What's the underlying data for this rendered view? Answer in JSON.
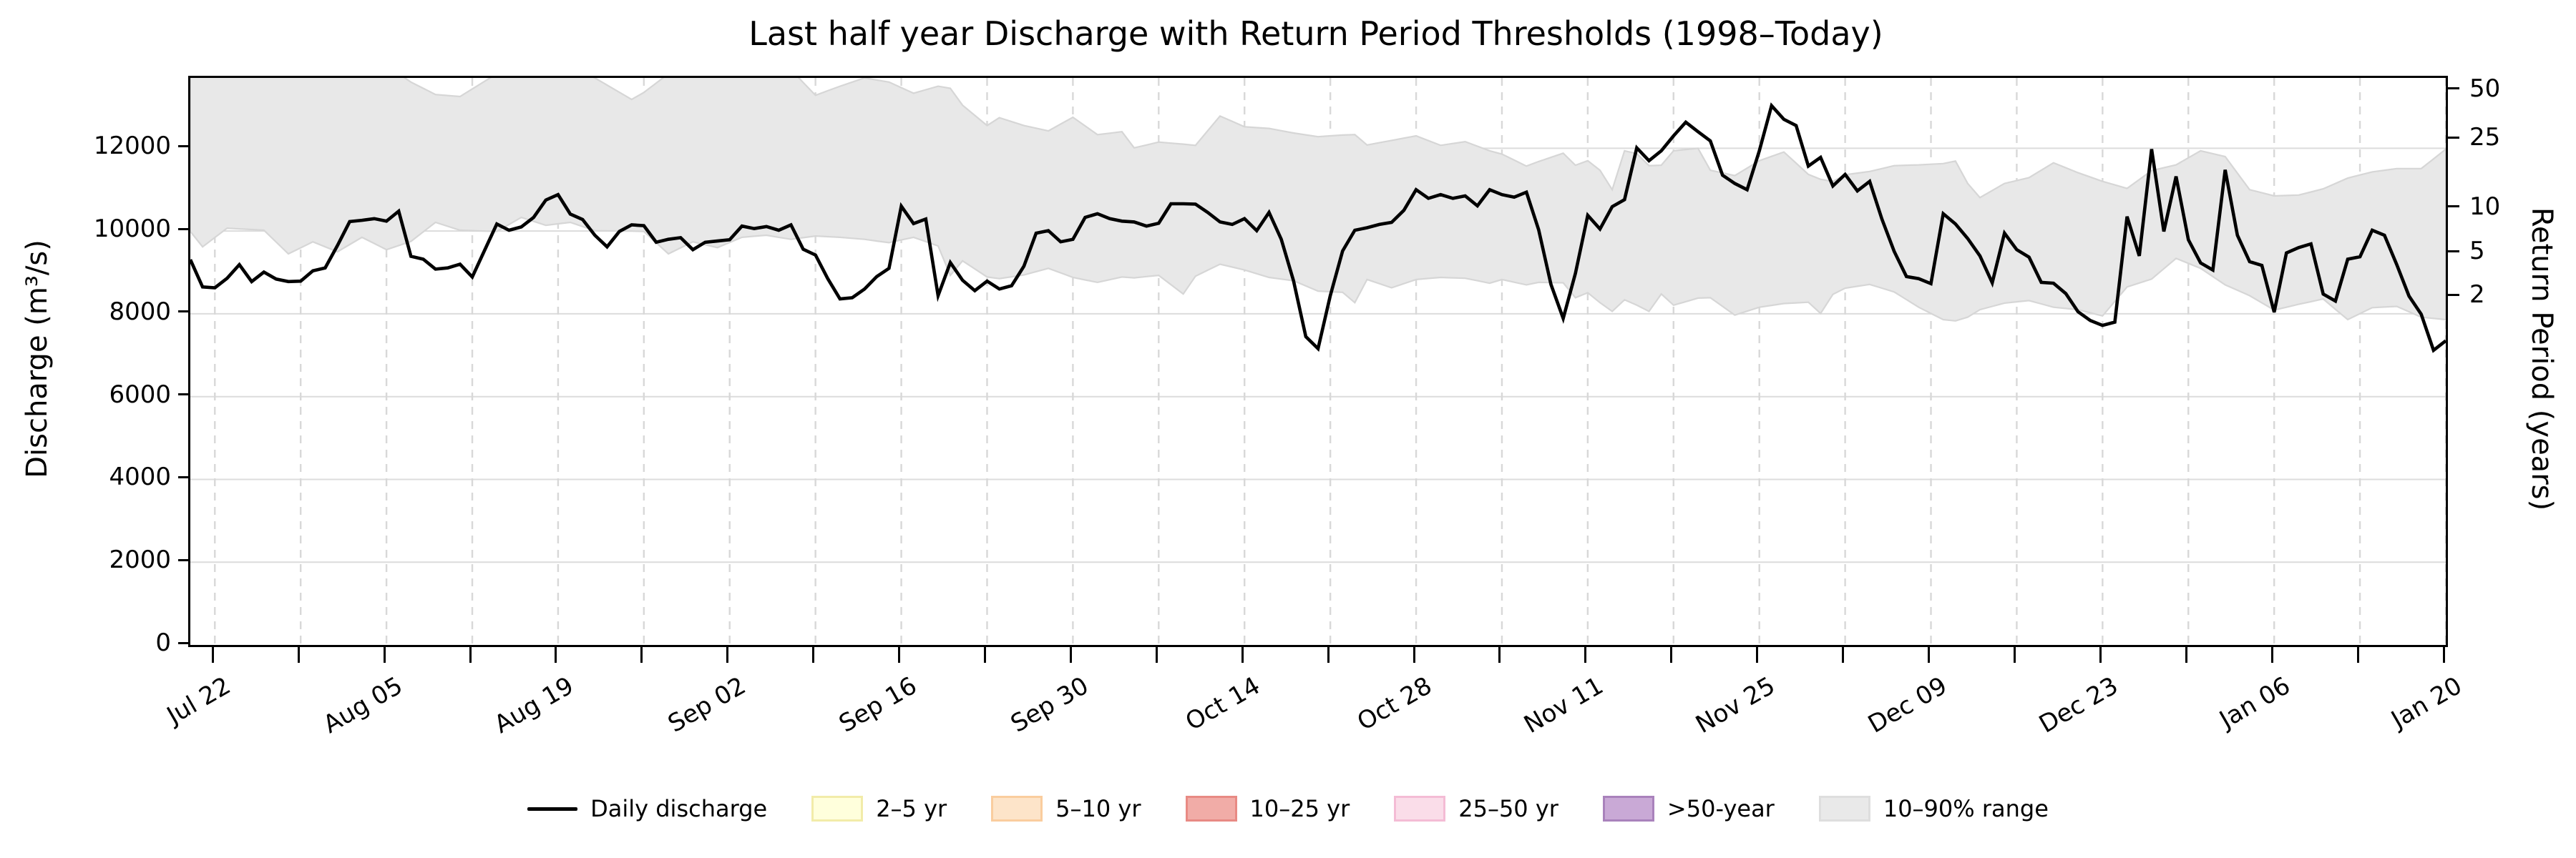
{
  "title": "Last half year Discharge with Return Period Thresholds (1998–Today)",
  "axes": {
    "left": {
      "label": "Discharge (m³/s)",
      "tick_values": [
        0,
        2000,
        4000,
        6000,
        8000,
        10000,
        12000
      ],
      "range": [
        0,
        13700
      ]
    },
    "right": {
      "label": "Return Period (years)",
      "ticks": [
        {
          "label": "2",
          "discharge": 8410
        },
        {
          "label": "5",
          "discharge": 9460
        },
        {
          "label": "10",
          "discharge": 10540
        },
        {
          "label": "25",
          "discharge": 12210
        },
        {
          "label": "50",
          "discharge": 13390
        }
      ]
    },
    "x": {
      "start_date": "Jul 20",
      "end_date": "Jan 20",
      "span_days": 184,
      "major_ticks": [
        {
          "day": 2,
          "label": "Jul 22"
        },
        {
          "day": 16,
          "label": "Aug 05"
        },
        {
          "day": 30,
          "label": "Aug 19"
        },
        {
          "day": 44,
          "label": "Sep 02"
        },
        {
          "day": 58,
          "label": "Sep 16"
        },
        {
          "day": 72,
          "label": "Sep 30"
        },
        {
          "day": 86,
          "label": "Oct 14"
        },
        {
          "day": 100,
          "label": "Oct 28"
        },
        {
          "day": 114,
          "label": "Nov 11"
        },
        {
          "day": 128,
          "label": "Nov 25"
        },
        {
          "day": 142,
          "label": "Dec 09"
        },
        {
          "day": 156,
          "label": "Dec 23"
        },
        {
          "day": 170,
          "label": "Jan 06"
        },
        {
          "day": 184,
          "label": "Jan 20"
        }
      ],
      "minor_tick_days": [
        9,
        23,
        37,
        51,
        65,
        79,
        93,
        107,
        121,
        135,
        149,
        163,
        177
      ]
    }
  },
  "legend": [
    {
      "label": "Daily discharge",
      "type": "line",
      "fill": "#000000",
      "edge": "#000000"
    },
    {
      "label": "2–5 yr",
      "type": "patch",
      "fill": "#FFFFDC",
      "edge": "#F2ECA9"
    },
    {
      "label": "5–10 yr",
      "type": "patch",
      "fill": "#FDE4C9",
      "edge": "#FACD9E"
    },
    {
      "label": "10–25 yr",
      "type": "patch",
      "fill": "#F1ACA7",
      "edge": "#E88A84"
    },
    {
      "label": "25–50 yr",
      "type": "patch",
      "fill": "#FADDE9",
      "edge": "#F4BCD5"
    },
    {
      "label": ">50-year",
      "type": "patch",
      "fill": "#C9A9D6",
      "edge": "#A982BC"
    },
    {
      "label": "10–90% range",
      "type": "patch",
      "fill": "#E9E9E9",
      "edge": "#DEDEDE"
    }
  ],
  "colors": {
    "line": "#000000",
    "band_fill": "#E8E8E8",
    "band_edge": "#D6D6D6",
    "grid_h": "#DCDCDC",
    "grid_v": "#D8D8D8"
  },
  "chart_data": {
    "type": "line",
    "title": "Last half year Discharge with Return Period Thresholds (1998–Today)",
    "xlabel": "",
    "ylabel": "Discharge (m³/s)",
    "ylim": [
      0,
      13700
    ],
    "x_unit": "days since Jul 20",
    "grid": true,
    "legend_position": "bottom",
    "return_period_thresholds": {
      "2": 8410,
      "5": 9460,
      "10": 10540,
      "25": 12210,
      "50": 13390
    },
    "series": [
      {
        "name": "Daily discharge",
        "values": [
          9310,
          8650,
          8630,
          8860,
          9190,
          8780,
          9010,
          8840,
          8780,
          8790,
          9040,
          9110,
          9650,
          10230,
          10260,
          10300,
          10240,
          10480,
          9390,
          9320,
          9080,
          9110,
          9200,
          8890,
          9530,
          10170,
          10020,
          10100,
          10330,
          10750,
          10880,
          10410,
          10280,
          9900,
          9620,
          9990,
          10150,
          10130,
          9730,
          9800,
          9840,
          9550,
          9730,
          9760,
          9790,
          10120,
          10060,
          10110,
          10020,
          10150,
          9560,
          9420,
          8850,
          8360,
          8390,
          8600,
          8900,
          9100,
          10600,
          10180,
          10290,
          8440,
          9240,
          8810,
          8560,
          8790,
          8600,
          8680,
          9150,
          9950,
          10010,
          9740,
          9800,
          10330,
          10420,
          10300,
          10240,
          10220,
          10120,
          10190,
          10660,
          10660,
          10650,
          10450,
          10220,
          10160,
          10300,
          10010,
          10450,
          9800,
          8800,
          7450,
          7160,
          8440,
          9520,
          10020,
          10080,
          10160,
          10210,
          10500,
          11000,
          10790,
          10880,
          10790,
          10850,
          10610,
          11000,
          10880,
          10820,
          10940,
          10030,
          8710,
          7890,
          8980,
          10380,
          10050,
          10590,
          10760,
          12010,
          11700,
          11940,
          12300,
          12630,
          12400,
          12180,
          11350,
          11150,
          11000,
          11940,
          13030,
          12700,
          12550,
          11570,
          11780,
          11090,
          11370,
          10970,
          11200,
          10290,
          9510,
          8900,
          8850,
          8730,
          10420,
          10170,
          9820,
          9400,
          8750,
          9950,
          9550,
          9370,
          8760,
          8740,
          8490,
          8050,
          7840,
          7720,
          7800,
          10350,
          9400,
          11980,
          9990,
          11320,
          9790,
          9230,
          9060,
          11480,
          9900,
          9260,
          9170,
          8040,
          9470,
          9600,
          9690,
          8480,
          8310,
          9320,
          9380,
          10020,
          9900,
          9190,
          8430,
          7990,
          7120,
          7350
        ]
      }
    ],
    "band": {
      "name": "10–90% range",
      "note_units": "[day, lower, upper]",
      "points": [
        [
          0,
          9990,
          13900
        ],
        [
          1,
          9620,
          13850
        ],
        [
          3,
          10070,
          14000
        ],
        [
          6,
          10020,
          14000
        ],
        [
          8,
          9450,
          14000
        ],
        [
          10,
          9740,
          14000
        ],
        [
          12,
          9500,
          14000
        ],
        [
          14,
          9850,
          14000
        ],
        [
          16,
          9550,
          14000
        ],
        [
          18,
          9750,
          13600
        ],
        [
          20,
          10210,
          13300
        ],
        [
          22,
          10020,
          13250
        ],
        [
          25,
          9990,
          13800
        ],
        [
          27,
          10330,
          14000
        ],
        [
          29,
          10140,
          14000
        ],
        [
          31,
          10210,
          14000
        ],
        [
          33,
          10010,
          13700
        ],
        [
          36,
          10000,
          13180
        ],
        [
          37,
          9990,
          13350
        ],
        [
          39,
          9450,
          13800
        ],
        [
          41,
          9740,
          14000
        ],
        [
          43,
          9600,
          14000
        ],
        [
          45,
          9850,
          14000
        ],
        [
          47,
          9900,
          14000
        ],
        [
          49,
          9800,
          13900
        ],
        [
          51,
          9880,
          13280
        ],
        [
          53,
          9850,
          13500
        ],
        [
          55,
          9800,
          13700
        ],
        [
          57,
          9720,
          13600
        ],
        [
          59,
          9850,
          13330
        ],
        [
          61,
          9640,
          13500
        ],
        [
          62,
          8930,
          13450
        ],
        [
          63,
          9280,
          13040
        ],
        [
          65,
          8890,
          12550
        ],
        [
          66,
          8850,
          12740
        ],
        [
          68,
          8940,
          12550
        ],
        [
          70,
          9100,
          12420
        ],
        [
          72,
          8880,
          12750
        ],
        [
          74,
          8760,
          12330
        ],
        [
          76,
          8890,
          12400
        ],
        [
          77,
          8870,
          12010
        ],
        [
          79,
          8930,
          12150
        ],
        [
          81,
          8480,
          12100
        ],
        [
          82,
          8910,
          12070
        ],
        [
          84,
          9200,
          12780
        ],
        [
          86,
          9060,
          12520
        ],
        [
          88,
          8880,
          12480
        ],
        [
          90,
          8800,
          12370
        ],
        [
          92,
          8550,
          12280
        ],
        [
          94,
          8520,
          12320
        ],
        [
          95,
          8270,
          12330
        ],
        [
          96,
          8830,
          12080
        ],
        [
          98,
          8630,
          12190
        ],
        [
          100,
          8830,
          12300
        ],
        [
          102,
          8880,
          12070
        ],
        [
          104,
          8860,
          12160
        ],
        [
          106,
          8740,
          11940
        ],
        [
          107,
          8830,
          11860
        ],
        [
          109,
          8700,
          11570
        ],
        [
          110,
          8760,
          11680
        ],
        [
          112,
          8750,
          11880
        ],
        [
          113,
          8390,
          11590
        ],
        [
          114,
          8510,
          11700
        ],
        [
          115,
          8270,
          11470
        ],
        [
          116,
          8060,
          11000
        ],
        [
          117,
          8340,
          11940
        ],
        [
          118,
          8210,
          11870
        ],
        [
          119,
          8060,
          11580
        ],
        [
          120,
          8480,
          11590
        ],
        [
          121,
          8210,
          11940
        ],
        [
          123,
          8380,
          12000
        ],
        [
          124,
          8390,
          11470
        ],
        [
          126,
          7970,
          11340
        ],
        [
          128,
          8160,
          11700
        ],
        [
          130,
          8250,
          11910
        ],
        [
          132,
          8280,
          11370
        ],
        [
          133,
          8010,
          11250
        ],
        [
          134,
          8470,
          11200
        ],
        [
          135,
          8620,
          11360
        ],
        [
          137,
          8710,
          11440
        ],
        [
          139,
          8530,
          11580
        ],
        [
          141,
          8160,
          11600
        ],
        [
          143,
          7860,
          11630
        ],
        [
          144,
          7830,
          11690
        ],
        [
          145,
          7920,
          11150
        ],
        [
          146,
          8100,
          10810
        ],
        [
          148,
          8260,
          11150
        ],
        [
          150,
          8320,
          11290
        ],
        [
          152,
          8160,
          11650
        ],
        [
          154,
          8100,
          11410
        ],
        [
          156,
          7950,
          11200
        ],
        [
          158,
          8650,
          11030
        ],
        [
          160,
          8840,
          11460
        ],
        [
          162,
          9340,
          11600
        ],
        [
          164,
          9100,
          11940
        ],
        [
          166,
          8700,
          11800
        ],
        [
          168,
          8440,
          11000
        ],
        [
          170,
          8090,
          10850
        ],
        [
          172,
          8230,
          10870
        ],
        [
          174,
          8360,
          11020
        ],
        [
          176,
          7860,
          11280
        ],
        [
          178,
          8150,
          11430
        ],
        [
          180,
          8180,
          11510
        ],
        [
          182,
          7920,
          11510
        ],
        [
          184,
          7860,
          11980
        ]
      ]
    }
  }
}
